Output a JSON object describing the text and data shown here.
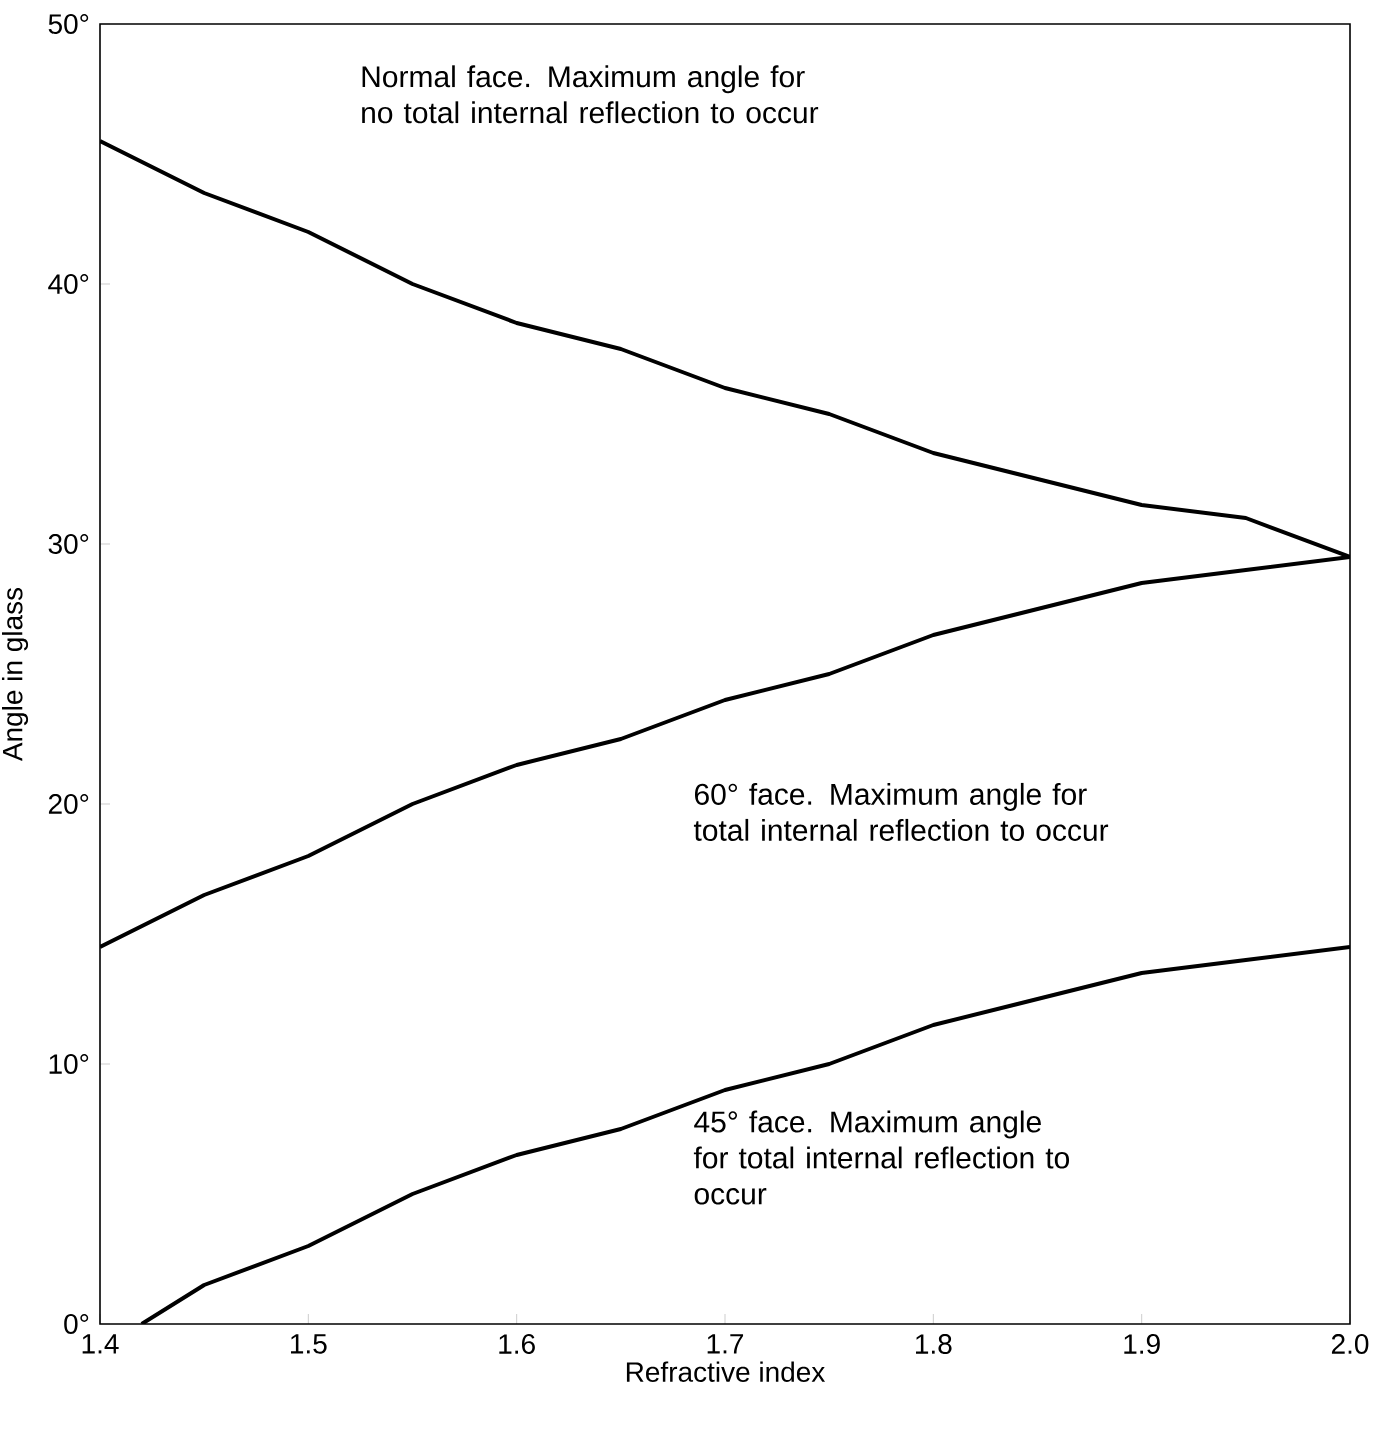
{
  "chart_data": {
    "type": "line",
    "xlabel": "Refractive index",
    "ylabel": "Angle in glass",
    "xlim": [
      1.4,
      2.0
    ],
    "ylim": [
      0,
      50
    ],
    "xticks": [
      {
        "value": 1.4,
        "label": "1.4"
      },
      {
        "value": 1.5,
        "label": "1.5"
      },
      {
        "value": 1.6,
        "label": "1.6"
      },
      {
        "value": 1.7,
        "label": "1.7"
      },
      {
        "value": 1.8,
        "label": "1.8"
      },
      {
        "value": 1.9,
        "label": "1.9"
      },
      {
        "value": 2.0,
        "label": "2.0"
      }
    ],
    "yticks": [
      {
        "value": 0,
        "label": "0°"
      },
      {
        "value": 10,
        "label": "10°"
      },
      {
        "value": 20,
        "label": "20°"
      },
      {
        "value": 30,
        "label": "30°"
      },
      {
        "value": 40,
        "label": "40°"
      },
      {
        "value": 50,
        "label": "50°"
      }
    ],
    "series": [
      {
        "color": "#000000",
        "x": [
          1.4,
          1.45,
          1.5,
          1.55,
          1.6,
          1.65,
          1.7,
          1.75,
          1.8,
          1.85,
          1.9,
          1.95,
          2.0
        ],
        "values": [
          45.5,
          43.5,
          42,
          40,
          38.5,
          37.5,
          36,
          35,
          33.5,
          32.5,
          31.5,
          31,
          29.5
        ]
      },
      {
        "color": "#000000",
        "x": [
          1.4,
          1.45,
          1.5,
          1.55,
          1.6,
          1.65,
          1.7,
          1.75,
          1.8,
          1.85,
          1.9,
          1.95,
          2.0
        ],
        "values": [
          14.5,
          16.5,
          18,
          20,
          21.5,
          22.5,
          24,
          25,
          26.5,
          27.5,
          28.5,
          29,
          29.5
        ]
      },
      {
        "color": "#000000",
        "x": [
          1.42,
          1.45,
          1.5,
          1.55,
          1.6,
          1.65,
          1.7,
          1.75,
          1.8,
          1.85,
          1.9,
          1.95,
          2.0
        ],
        "values": [
          0,
          1.5,
          3,
          5,
          6.5,
          7.5,
          9,
          10,
          11.5,
          12.5,
          13.5,
          14,
          14.5
        ]
      }
    ],
    "annotations": [
      "Normal face. Maximum angle for no total internal reflection to occur",
      "60° face. Maximum angle for total internal reflection to occur",
      "45° face. Maximum angle for total internal reflection to occur"
    ]
  }
}
